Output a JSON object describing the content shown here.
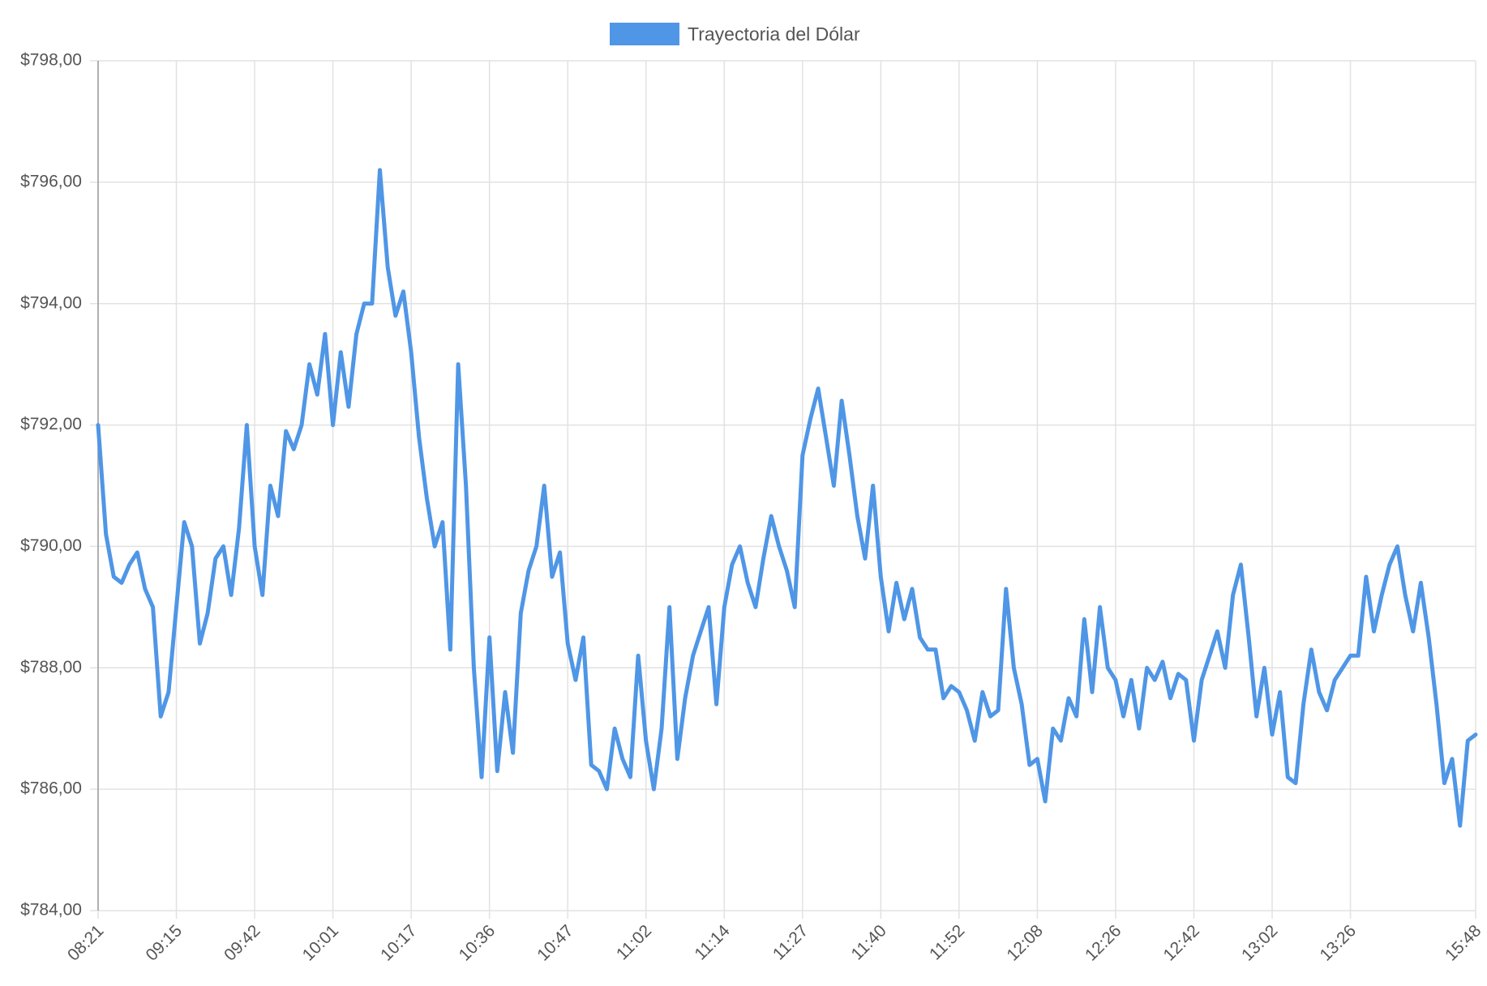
{
  "chart_data": {
    "type": "line",
    "legend": "top",
    "grid": true,
    "series": [
      {
        "name": "Trayectoria del Dólar",
        "color": "#4f96e6",
        "values": [
          792.0,
          790.2,
          789.5,
          789.4,
          789.7,
          789.9,
          789.3,
          789.0,
          787.2,
          787.6,
          789.0,
          790.4,
          790.0,
          788.4,
          788.9,
          789.8,
          790.0,
          789.2,
          790.3,
          792.0,
          790.0,
          789.2,
          791.0,
          790.5,
          791.9,
          791.6,
          792.0,
          793.0,
          792.5,
          793.5,
          792.0,
          793.2,
          792.3,
          793.5,
          794.0,
          794.0,
          796.2,
          794.6,
          793.8,
          794.2,
          793.2,
          791.8,
          790.8,
          790.0,
          790.4,
          788.3,
          793.0,
          791.0,
          788.0,
          786.2,
          788.5,
          786.3,
          787.6,
          786.6,
          788.9,
          789.6,
          790.0,
          791.0,
          789.5,
          789.9,
          788.4,
          787.8,
          788.5,
          786.4,
          786.3,
          786.0,
          787.0,
          786.5,
          786.2,
          788.2,
          786.8,
          786.0,
          787.0,
          789.0,
          786.5,
          787.5,
          788.2,
          788.6,
          789.0,
          787.4,
          789.0,
          789.7,
          790.0,
          789.4,
          789.0,
          789.8,
          790.5,
          790.0,
          789.6,
          789.0,
          791.5,
          792.1,
          792.6,
          791.8,
          791.0,
          792.4,
          791.5,
          790.5,
          789.8,
          791.0,
          789.5,
          788.6,
          789.4,
          788.8,
          789.3,
          788.5,
          788.3,
          788.3,
          787.5,
          787.7,
          787.6,
          787.3,
          786.8,
          787.6,
          787.2,
          787.3,
          789.3,
          788.0,
          787.4,
          786.4,
          786.5,
          785.8,
          787.0,
          786.8,
          787.5,
          787.2,
          788.8,
          787.6,
          789.0,
          788.0,
          787.8,
          787.2,
          787.8,
          787.0,
          788.0,
          787.8,
          788.1,
          787.5,
          787.9,
          787.8,
          786.8,
          787.8,
          788.2,
          788.6,
          788.0,
          789.2,
          789.7,
          788.5,
          787.2,
          788.0,
          786.9,
          787.6,
          786.2,
          786.1,
          787.4,
          788.3,
          787.6,
          787.3,
          787.8,
          788.0,
          788.2,
          788.2,
          789.5,
          788.6,
          789.2,
          789.7,
          790.0,
          789.2,
          788.6,
          789.4,
          788.5,
          787.4,
          786.1,
          786.5,
          785.4,
          786.8,
          786.9
        ]
      }
    ],
    "categories": [
      "08:21",
      null,
      null,
      null,
      null,
      null,
      null,
      null,
      null,
      null,
      "09:15",
      null,
      null,
      null,
      null,
      null,
      null,
      null,
      null,
      null,
      "09:42",
      null,
      null,
      null,
      null,
      null,
      null,
      null,
      null,
      null,
      "10:01",
      null,
      null,
      null,
      null,
      null,
      null,
      null,
      null,
      null,
      "10:17",
      null,
      null,
      null,
      null,
      null,
      null,
      null,
      null,
      null,
      "10:36",
      null,
      null,
      null,
      null,
      null,
      null,
      null,
      null,
      null,
      "10:47",
      null,
      null,
      null,
      null,
      null,
      null,
      null,
      null,
      null,
      "11:02",
      null,
      null,
      null,
      null,
      null,
      null,
      null,
      null,
      null,
      "11:14",
      null,
      null,
      null,
      null,
      null,
      null,
      null,
      null,
      null,
      "11:27",
      null,
      null,
      null,
      null,
      null,
      null,
      null,
      null,
      null,
      "11:40",
      null,
      null,
      null,
      null,
      null,
      null,
      null,
      null,
      null,
      "11:52",
      null,
      null,
      null,
      null,
      null,
      null,
      null,
      null,
      null,
      "12:08",
      null,
      null,
      null,
      null,
      null,
      null,
      null,
      null,
      null,
      "12:26",
      null,
      null,
      null,
      null,
      null,
      null,
      null,
      null,
      null,
      "12:42",
      null,
      null,
      null,
      null,
      null,
      null,
      null,
      null,
      null,
      "13:02",
      null,
      null,
      null,
      null,
      null,
      null,
      null,
      null,
      null,
      "13:26",
      null,
      null,
      null,
      null,
      null,
      null,
      null,
      null,
      null,
      null,
      null,
      null,
      null,
      null,
      null,
      "15:48"
    ],
    "ylim": [
      784,
      798
    ],
    "yticks": [
      {
        "value": 784,
        "label": "$784,00"
      },
      {
        "value": 786,
        "label": "$786,00"
      },
      {
        "value": 788,
        "label": "$788,00"
      },
      {
        "value": 790,
        "label": "$790,00"
      },
      {
        "value": 792,
        "label": "$792,00"
      },
      {
        "value": 794,
        "label": "$794,00"
      },
      {
        "value": 796,
        "label": "$796,00"
      },
      {
        "value": 798,
        "label": "$798,00"
      }
    ]
  }
}
